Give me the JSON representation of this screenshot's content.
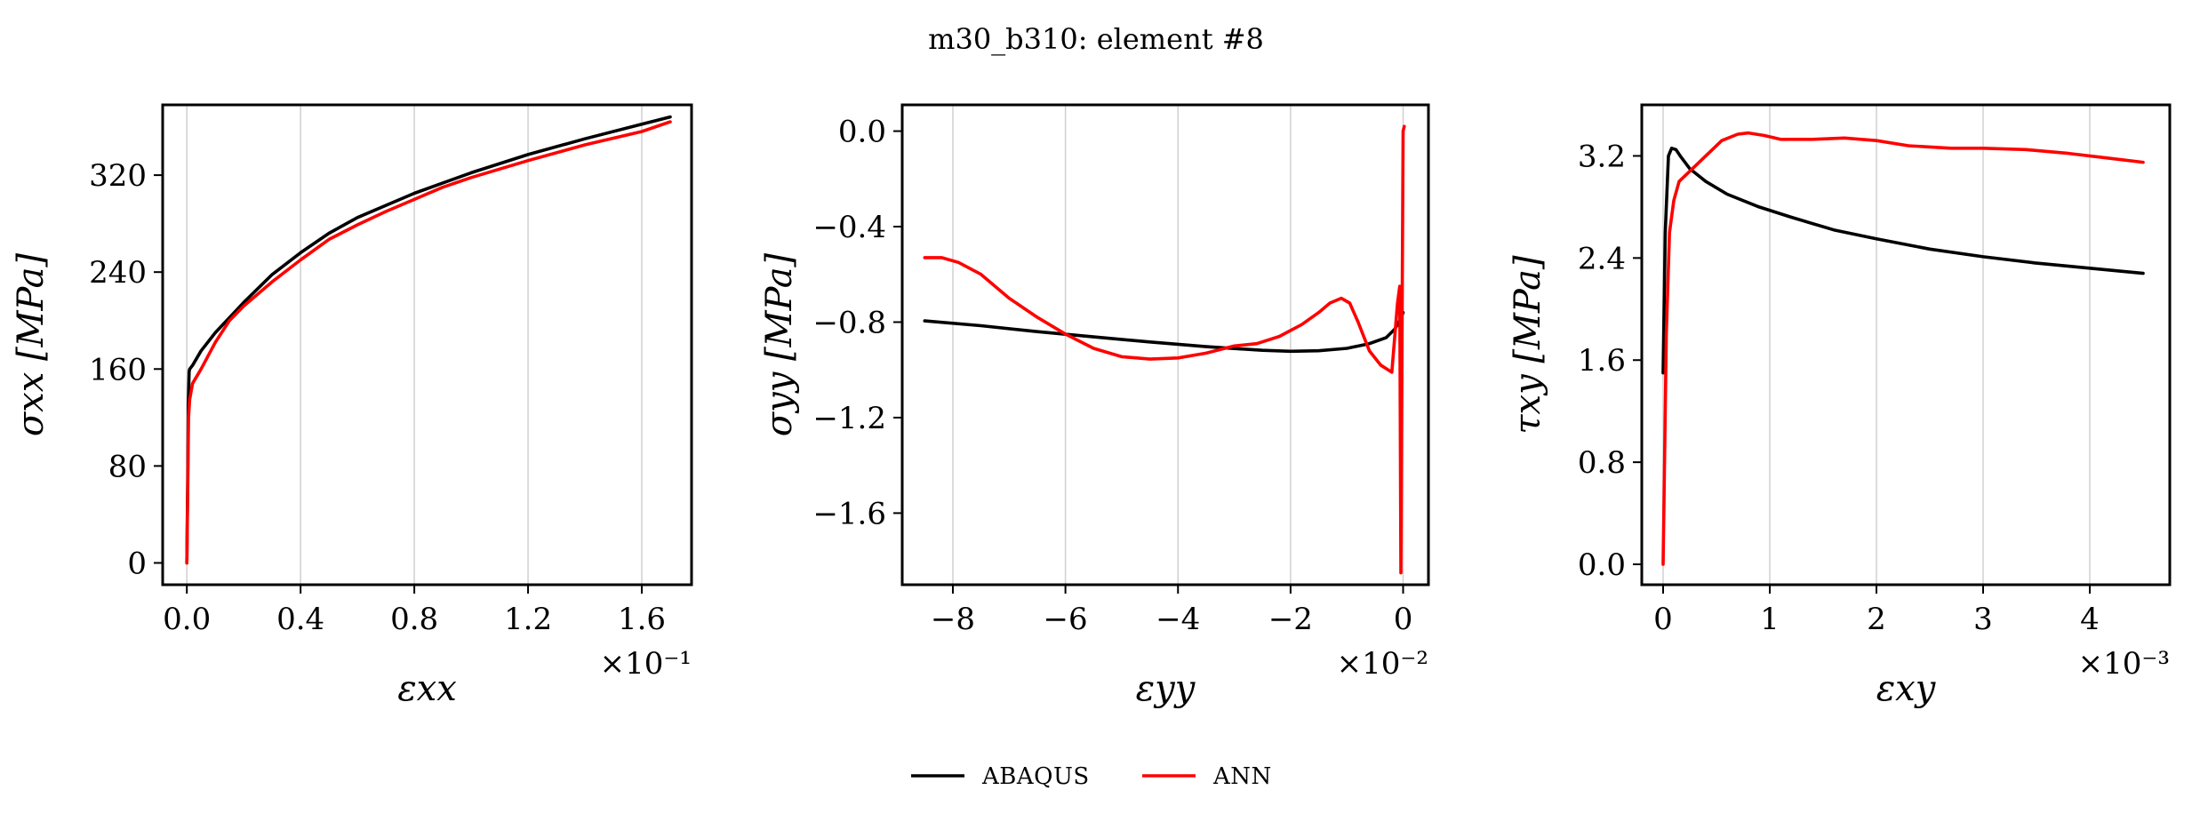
{
  "figure": {
    "title": "m30_b310: element #8"
  },
  "legend": {
    "placement": "bottom-center",
    "entries": [
      {
        "name": "ABAQUS",
        "color": "#000000"
      },
      {
        "name": "ANN",
        "color": "#ff0000"
      }
    ]
  },
  "chart_data": [
    {
      "type": "line",
      "xlabel": "εxx",
      "ylabel": "σxx [MPa]",
      "x_multiplier": "×10⁻¹",
      "x_ticks": [
        0.0,
        0.4,
        0.8,
        1.2,
        1.6
      ],
      "x_tick_labels": [
        "0.0",
        "0.4",
        "0.8",
        "1.2",
        "1.6"
      ],
      "y_ticks": [
        0,
        80,
        160,
        240,
        320
      ],
      "y_tick_labels": [
        "0",
        "80",
        "160",
        "240",
        "320"
      ],
      "xlim": [
        -0.085,
        1.775
      ],
      "ylim": [
        -18,
        378
      ],
      "grid": "vertical",
      "series": [
        {
          "name": "ABAQUS",
          "color": "#000000",
          "x": [
            0.0,
            0.003,
            0.005,
            0.008,
            0.01,
            0.02,
            0.05,
            0.1,
            0.2,
            0.3,
            0.4,
            0.5,
            0.6,
            0.8,
            1.0,
            1.2,
            1.4,
            1.6,
            1.7
          ],
          "y": [
            0,
            70,
            130,
            158,
            160,
            163,
            175,
            190,
            215,
            238,
            256,
            272,
            285,
            305,
            322,
            337,
            350,
            362,
            368
          ]
        },
        {
          "name": "ANN",
          "color": "#ff0000",
          "x": [
            0.0,
            0.003,
            0.006,
            0.01,
            0.02,
            0.05,
            0.1,
            0.15,
            0.2,
            0.3,
            0.4,
            0.5,
            0.6,
            0.7,
            0.8,
            0.9,
            1.0,
            1.2,
            1.4,
            1.6,
            1.7
          ],
          "y": [
            0,
            60,
            120,
            135,
            148,
            160,
            182,
            200,
            212,
            232,
            250,
            267,
            279,
            290,
            300,
            310,
            318,
            332,
            345,
            356,
            364
          ]
        }
      ]
    },
    {
      "type": "line",
      "xlabel": "εyy",
      "ylabel": "σyy [MPa]",
      "x_multiplier": "×10⁻²",
      "x_ticks": [
        -8,
        -6,
        -4,
        -2,
        0
      ],
      "x_tick_labels": [
        "−8",
        "−6",
        "−4",
        "−2",
        "0"
      ],
      "y_ticks": [
        0.0,
        -0.4,
        -0.8,
        -1.2,
        -1.6
      ],
      "y_tick_labels": [
        "0.0",
        "−0.4",
        "−0.8",
        "−1.2",
        "−1.6"
      ],
      "xlim": [
        -8.9,
        0.45
      ],
      "ylim": [
        -1.9,
        0.11
      ],
      "grid": "vertical",
      "series": [
        {
          "name": "ABAQUS",
          "color": "#000000",
          "x": [
            -8.5,
            -7.5,
            -6.5,
            -5.5,
            -4.5,
            -3.5,
            -2.5,
            -2.0,
            -1.5,
            -1.0,
            -0.6,
            -0.3,
            -0.15,
            -0.05,
            0.0
          ],
          "y": [
            -0.795,
            -0.815,
            -0.84,
            -0.862,
            -0.883,
            -0.903,
            -0.918,
            -0.922,
            -0.92,
            -0.91,
            -0.89,
            -0.865,
            -0.83,
            -0.79,
            -0.76
          ]
        },
        {
          "name": "ANN",
          "color": "#ff0000",
          "x": [
            -8.5,
            -8.2,
            -7.9,
            -7.5,
            -7.0,
            -6.5,
            -6.0,
            -5.5,
            -5.0,
            -4.5,
            -4.0,
            -3.5,
            -3.0,
            -2.6,
            -2.2,
            -1.8,
            -1.5,
            -1.3,
            -1.1,
            -0.95,
            -0.8,
            -0.6,
            -0.4,
            -0.2,
            -0.1,
            -0.06,
            -0.04,
            -0.02,
            0.0,
            0.02
          ],
          "y": [
            -0.53,
            -0.53,
            -0.55,
            -0.6,
            -0.7,
            -0.78,
            -0.85,
            -0.91,
            -0.945,
            -0.955,
            -0.95,
            -0.93,
            -0.9,
            -0.89,
            -0.86,
            -0.81,
            -0.76,
            -0.72,
            -0.7,
            -0.72,
            -0.8,
            -0.92,
            -0.98,
            -1.01,
            -0.72,
            -0.65,
            -1.85,
            -0.9,
            0.0,
            0.02
          ]
        }
      ]
    },
    {
      "type": "line",
      "xlabel": "εxy",
      "ylabel": "τxy [MPa]",
      "x_multiplier": "×10⁻³",
      "x_ticks": [
        0,
        1,
        2,
        3,
        4
      ],
      "x_tick_labels": [
        "0",
        "1",
        "2",
        "3",
        "4"
      ],
      "y_ticks": [
        0.0,
        0.8,
        1.6,
        2.4,
        3.2
      ],
      "y_tick_labels": [
        "0.0",
        "0.8",
        "1.6",
        "2.4",
        "3.2"
      ],
      "xlim": [
        -0.2,
        4.75
      ],
      "ylim": [
        -0.16,
        3.6
      ],
      "grid": "vertical",
      "series": [
        {
          "name": "ABAQUS",
          "color": "#000000",
          "x": [
            0.0,
            0.02,
            0.05,
            0.08,
            0.12,
            0.16,
            0.25,
            0.4,
            0.6,
            0.9,
            1.2,
            1.6,
            2.0,
            2.5,
            3.0,
            3.5,
            4.0,
            4.5
          ],
          "y": [
            1.5,
            2.6,
            3.2,
            3.26,
            3.25,
            3.2,
            3.1,
            3.0,
            2.9,
            2.8,
            2.72,
            2.62,
            2.55,
            2.47,
            2.41,
            2.36,
            2.32,
            2.28
          ]
        },
        {
          "name": "ANN",
          "color": "#ff0000",
          "x": [
            0.0,
            0.01,
            0.03,
            0.06,
            0.1,
            0.15,
            0.25,
            0.4,
            0.55,
            0.7,
            0.8,
            0.95,
            1.1,
            1.4,
            1.7,
            2.0,
            2.3,
            2.7,
            3.0,
            3.4,
            3.8,
            4.2,
            4.5
          ],
          "y": [
            0.0,
            0.6,
            1.8,
            2.6,
            2.85,
            3.0,
            3.08,
            3.2,
            3.32,
            3.37,
            3.38,
            3.36,
            3.33,
            3.33,
            3.34,
            3.32,
            3.28,
            3.26,
            3.26,
            3.25,
            3.22,
            3.18,
            3.15
          ]
        }
      ]
    }
  ]
}
